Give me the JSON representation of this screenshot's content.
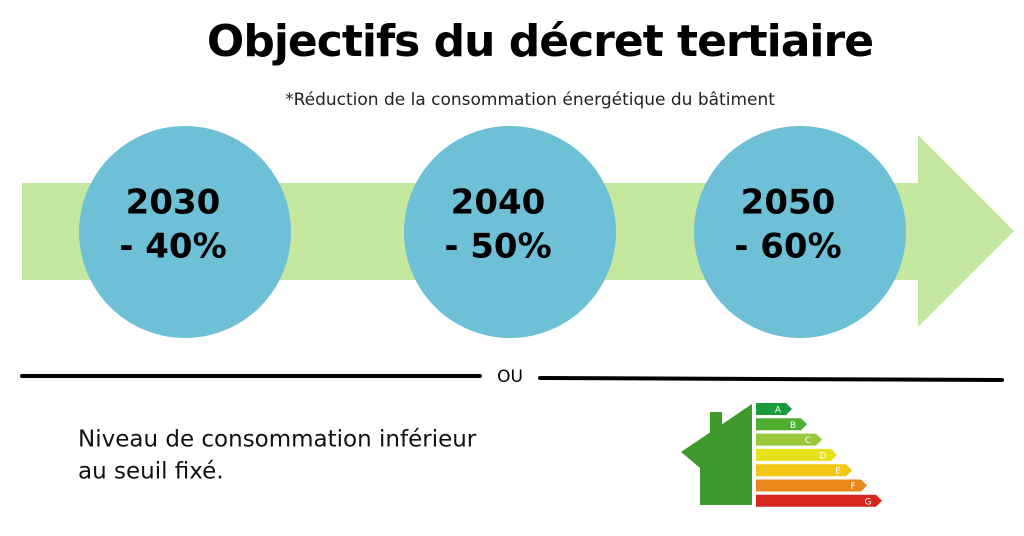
{
  "header": {
    "title": "Objectifs du décret tertiaire",
    "subtitle": "*Réduction de la consommation énergétique du bâtiment"
  },
  "milestones": [
    {
      "year": "2030",
      "reduction": "- 40%"
    },
    {
      "year": "2040",
      "reduction": "- 50%"
    },
    {
      "year": "2050",
      "reduction": "- 60%"
    }
  ],
  "separator": "OU",
  "alternative": {
    "lines": [
      "Niveau de consommation inférieur",
      "au seuil fixé."
    ]
  },
  "energy_label": {
    "classes": [
      {
        "letter": "A",
        "color": "#1a9a3a"
      },
      {
        "letter": "B",
        "color": "#4fae32"
      },
      {
        "letter": "C",
        "color": "#9bc83a"
      },
      {
        "letter": "D",
        "color": "#e6e21a"
      },
      {
        "letter": "E",
        "color": "#f3c613"
      },
      {
        "letter": "F",
        "color": "#e9871d"
      },
      {
        "letter": "G",
        "color": "#d7261e"
      }
    ]
  }
}
